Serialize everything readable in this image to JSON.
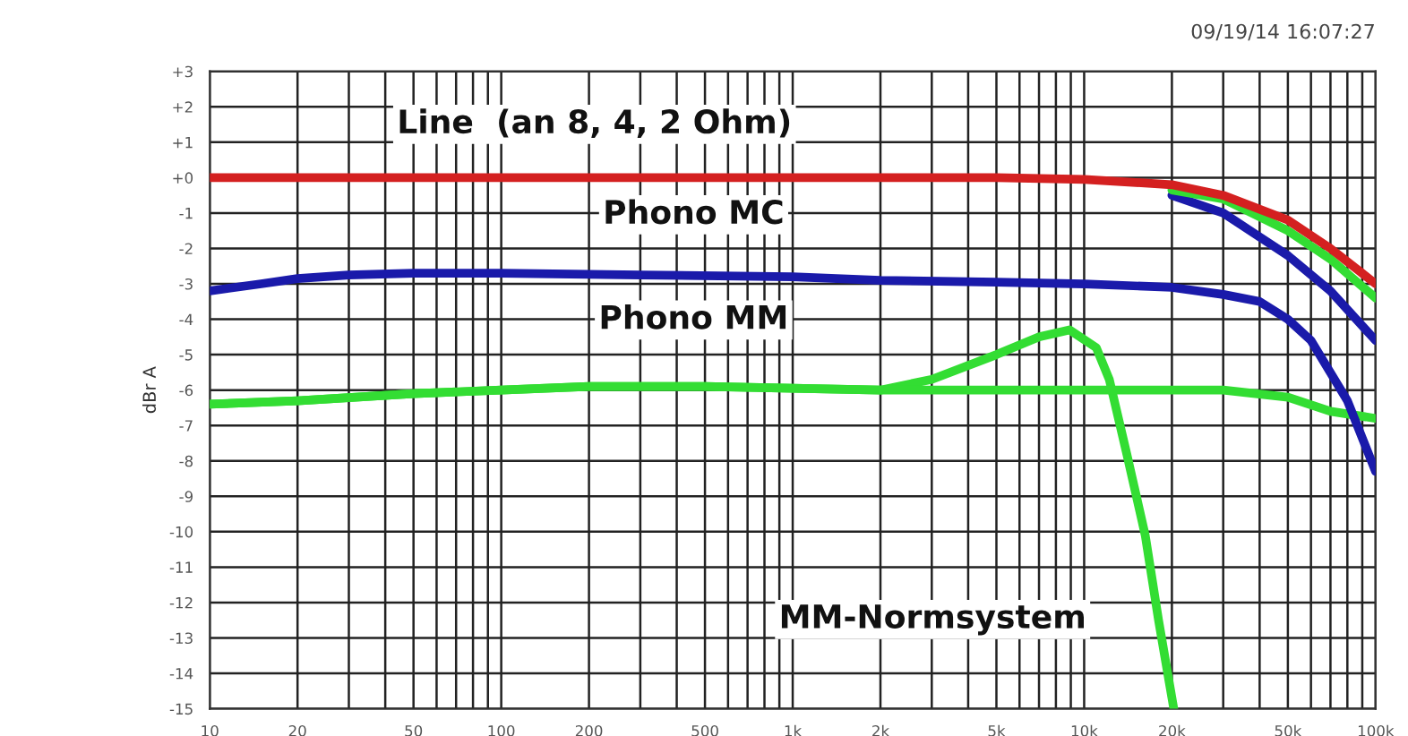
{
  "chart_data": {
    "type": "line",
    "ylabel": "dBr A",
    "log": "x",
    "grid": true,
    "legend": false,
    "marker": "none",
    "line_style": "solid",
    "xlim": [
      10,
      100000
    ],
    "ylim": [
      -15,
      3
    ],
    "xticks": [
      10,
      20,
      50,
      100,
      200,
      500,
      {
        "value": 1000,
        "label": "1k"
      },
      {
        "value": 2000,
        "label": "2k"
      },
      {
        "value": 5000,
        "label": "5k"
      },
      {
        "value": 10000,
        "label": "10k"
      },
      {
        "value": 20000,
        "label": "20k"
      },
      {
        "value": 50000,
        "label": "50k"
      },
      {
        "value": 100000,
        "label": "100k"
      }
    ],
    "yticks": [
      {
        "value": 3,
        "label": "+3"
      },
      {
        "value": 2,
        "label": "+2"
      },
      {
        "value": 1,
        "label": "+1"
      },
      {
        "value": 0,
        "label": "+0"
      },
      -1,
      -2,
      -3,
      -4,
      -5,
      -6,
      -7,
      -8,
      -9,
      -10,
      -11,
      -12,
      -13,
      -14,
      -15
    ],
    "series": [
      {
        "color": "#d42020",
        "x": [
          10,
          100,
          1000,
          5000,
          10000,
          20000,
          30000,
          50000,
          70000,
          100000
        ],
        "values": [
          0,
          0,
          0,
          0,
          -0.05,
          -0.2,
          -0.5,
          -1.2,
          -2.0,
          -3.0
        ]
      },
      {
        "color": "#33dd33",
        "x": [
          20000,
          30000,
          50000,
          70000,
          100000
        ],
        "values": [
          -0.35,
          -0.6,
          -1.5,
          -2.3,
          -3.4
        ]
      },
      {
        "color": "#1a1aaa",
        "x": [
          20000,
          30000,
          50000,
          70000,
          100000
        ],
        "values": [
          -0.5,
          -1.0,
          -2.2,
          -3.2,
          -4.6
        ]
      },
      {
        "color": "#1a1aaa",
        "x": [
          10,
          15,
          20,
          30,
          50,
          100,
          300,
          1000,
          2000,
          5000,
          10000,
          20000,
          30000,
          40000,
          50000,
          60000,
          80000,
          100000
        ],
        "values": [
          -3.2,
          -3.0,
          -2.85,
          -2.75,
          -2.7,
          -2.7,
          -2.75,
          -2.8,
          -2.9,
          -2.95,
          -3.0,
          -3.1,
          -3.3,
          -3.5,
          -4.0,
          -4.6,
          -6.3,
          -8.3
        ]
      },
      {
        "color": "#33dd33",
        "x": [
          10,
          20,
          50,
          100,
          200,
          500,
          1000,
          2000,
          5000,
          10000,
          20000,
          30000,
          50000,
          70000,
          100000
        ],
        "values": [
          -6.4,
          -6.3,
          -6.1,
          -6.0,
          -5.9,
          -5.9,
          -5.95,
          -6.0,
          -6.0,
          -6.0,
          -6.0,
          -6.0,
          -6.2,
          -6.6,
          -6.8
        ]
      },
      {
        "color": "#33dd33",
        "x": [
          10,
          20,
          50,
          100,
          200,
          500,
          1000,
          2000,
          3000,
          5000,
          7000,
          8900,
          11000,
          12200,
          14000,
          16200,
          18000,
          20300
        ],
        "values": [
          -6.4,
          -6.3,
          -6.1,
          -6.0,
          -5.9,
          -5.9,
          -5.95,
          -6.0,
          -5.7,
          -5.0,
          -4.5,
          -4.3,
          -4.8,
          -5.7,
          -7.8,
          -10.1,
          -12.5,
          -15
        ]
      }
    ],
    "annotations": [
      "09/19/14 16:07:27",
      "Line  (an 8, 4, 2 Ohm)",
      "Phono MC",
      "Phono MM",
      "MM-Normsystem"
    ]
  }
}
